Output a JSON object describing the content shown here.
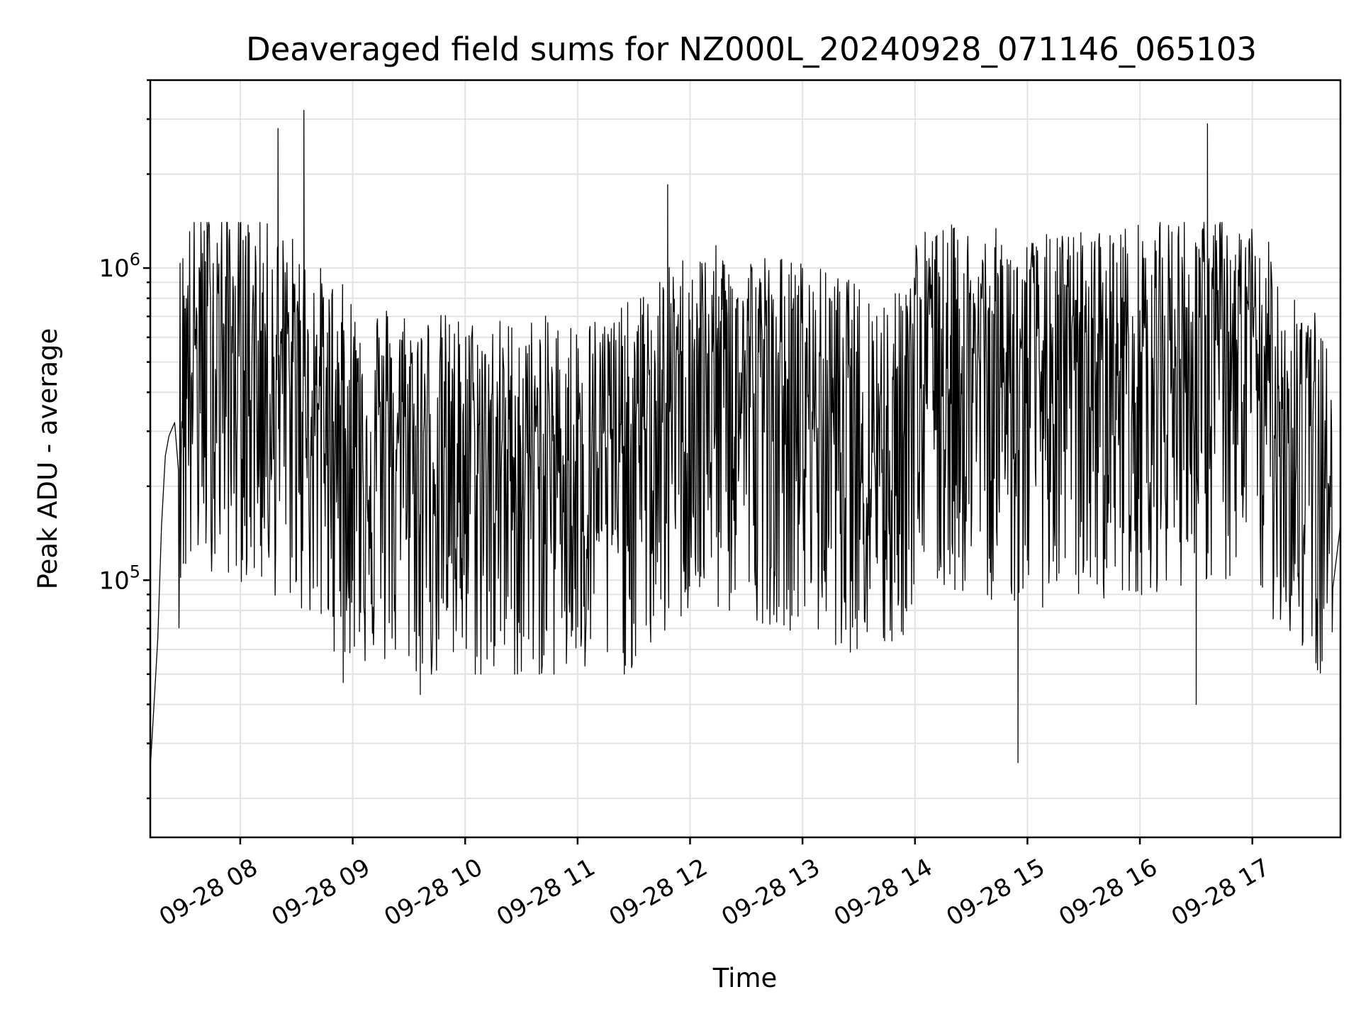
{
  "chart_data": {
    "type": "line",
    "title": "Deaveraged field sums for NZ000L_20240928_071146_065103",
    "xlabel": "Time",
    "ylabel": "Peak ADU - average",
    "yscale": "log",
    "xlim": [
      "2024-09-28 07:12",
      "2024-09-28 17:47"
    ],
    "ylim": [
      15000,
      4000000
    ],
    "grid": true,
    "x_ticks": [
      "09-28 08",
      "09-28 09",
      "09-28 10",
      "09-28 11",
      "09-28 12",
      "09-28 13",
      "09-28 14",
      "09-28 15",
      "09-28 16",
      "09-28 17"
    ],
    "y_ticks": [
      {
        "value": 100000,
        "base": "10",
        "exp": "5"
      },
      {
        "value": 1000000,
        "base": "10",
        "exp": "6"
      }
    ],
    "series": [
      {
        "color": "#000000",
        "points": [
          [
            "2024-09-28 07:12",
            25000
          ],
          [
            "2024-09-28 07:14",
            40000
          ],
          [
            "2024-09-28 07:16",
            65000
          ],
          [
            "2024-09-28 07:18",
            150000
          ],
          [
            "2024-09-28 07:20",
            250000
          ],
          [
            "2024-09-28 07:22",
            290000
          ],
          [
            "2024-09-28 07:25",
            320000
          ],
          [
            "2024-09-28 07:30",
            500000
          ],
          [
            "2024-09-28 07:35",
            550000
          ],
          [
            "2024-09-28 07:45",
            600000
          ],
          [
            "2024-09-28 08:00",
            550000
          ],
          [
            "2024-09-28 08:15",
            500000
          ],
          [
            "2024-09-28 08:30",
            450000
          ],
          [
            "2024-09-28 08:45",
            350000
          ],
          [
            "2024-09-28 09:00",
            300000
          ],
          [
            "2024-09-28 09:30",
            270000
          ],
          [
            "2024-09-28 10:00",
            250000
          ],
          [
            "2024-09-28 10:30",
            250000
          ],
          [
            "2024-09-28 11:00",
            250000
          ],
          [
            "2024-09-28 11:30",
            280000
          ],
          [
            "2024-09-28 12:00",
            420000
          ],
          [
            "2024-09-28 12:30",
            420000
          ],
          [
            "2024-09-28 13:00",
            380000
          ],
          [
            "2024-09-28 13:30",
            320000
          ],
          [
            "2024-09-28 13:50",
            300000
          ],
          [
            "2024-09-28 14:00",
            480000
          ],
          [
            "2024-09-28 14:30",
            500000
          ],
          [
            "2024-09-28 15:00",
            450000
          ],
          [
            "2024-09-28 15:30",
            480000
          ],
          [
            "2024-09-28 16:00",
            500000
          ],
          [
            "2024-09-28 16:30",
            550000
          ],
          [
            "2024-09-28 17:00",
            500000
          ],
          [
            "2024-09-28 17:30",
            300000
          ],
          [
            "2024-09-28 17:47",
            150000
          ]
        ],
        "spikes": [
          [
            "2024-09-28 08:20",
            2800000
          ],
          [
            "2024-09-28 08:34",
            3200000
          ],
          [
            "2024-09-28 11:48",
            1850000
          ],
          [
            "2024-09-28 16:36",
            2900000
          ],
          [
            "2024-09-28 14:55",
            26000
          ],
          [
            "2024-09-28 16:30",
            40000
          ],
          [
            "2024-09-28 09:36",
            43000
          ],
          [
            "2024-09-28 08:55",
            47000
          ]
        ],
        "noise_range": [
          50000,
          1400000
        ]
      }
    ]
  }
}
